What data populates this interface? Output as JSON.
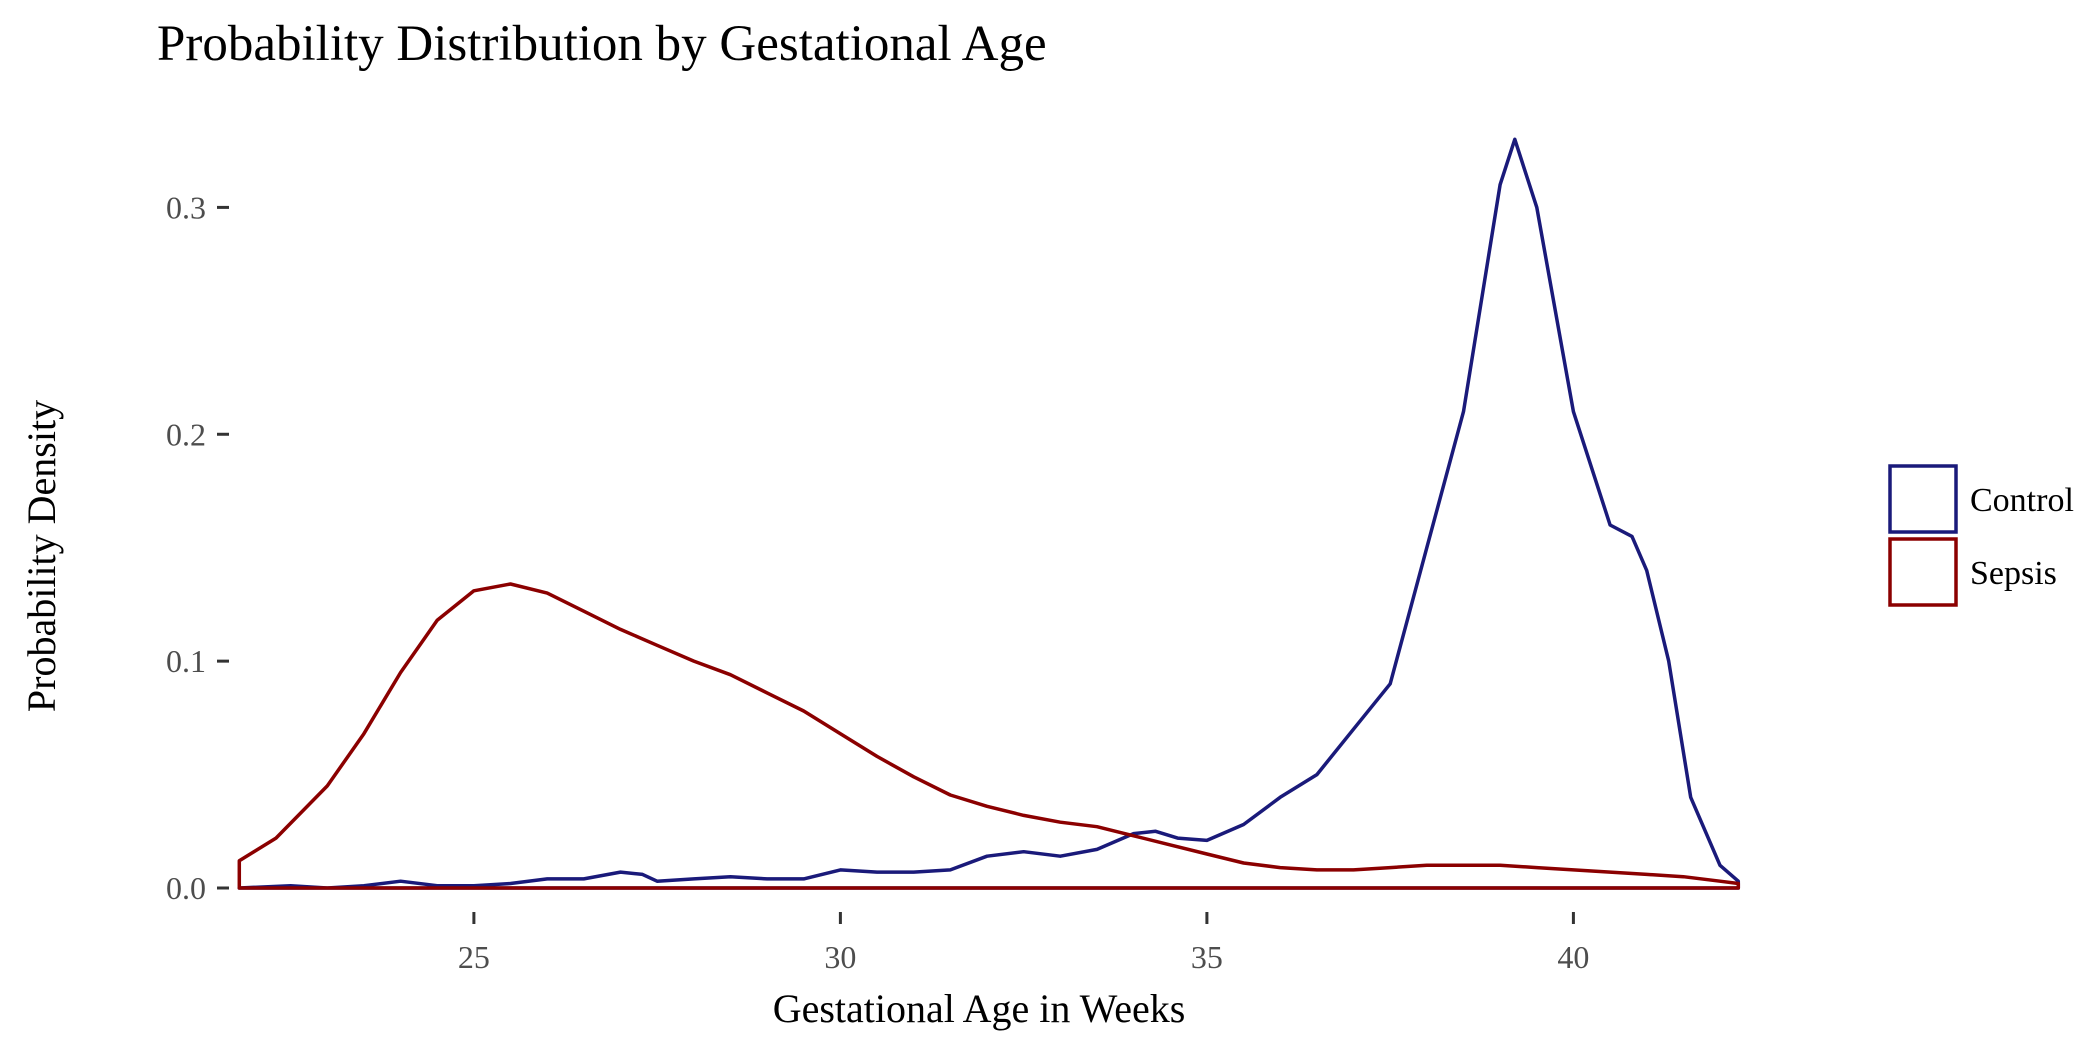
{
  "chart_data": {
    "type": "line",
    "subtype": "density",
    "title": "Probability Distribution by Gestational Age",
    "xlabel": "Gestational Age in Weeks",
    "ylabel": "Probability Density",
    "xlim": [
      21.7,
      42.3
    ],
    "ylim": [
      0,
      0.335
    ],
    "x_ticks": [
      25,
      30,
      35,
      40
    ],
    "y_ticks": [
      0.0,
      0.1,
      0.2,
      0.3
    ],
    "y_tick_labels": [
      "0.0",
      "0.1",
      "0.2",
      "0.3"
    ],
    "grid": false,
    "legend": "right",
    "series": [
      {
        "name": "Control",
        "color": "#1a1a7a",
        "x": [
          21.8,
          22.5,
          23.0,
          23.5,
          24.0,
          24.5,
          25.0,
          25.5,
          26.0,
          26.5,
          27.0,
          27.3,
          27.5,
          28.0,
          28.5,
          29.0,
          29.5,
          30.0,
          30.5,
          31.0,
          31.5,
          32.0,
          32.5,
          33.0,
          33.5,
          34.0,
          34.3,
          34.6,
          35.0,
          35.5,
          36.0,
          36.5,
          37.0,
          37.5,
          38.0,
          38.5,
          39.0,
          39.2,
          39.5,
          40.0,
          40.5,
          40.8,
          41.0,
          41.3,
          41.6,
          42.0,
          42.25
        ],
        "values": [
          0.0,
          0.001,
          0.0,
          0.001,
          0.003,
          0.001,
          0.001,
          0.002,
          0.004,
          0.004,
          0.007,
          0.006,
          0.003,
          0.004,
          0.005,
          0.004,
          0.004,
          0.008,
          0.007,
          0.007,
          0.008,
          0.014,
          0.016,
          0.014,
          0.017,
          0.024,
          0.025,
          0.022,
          0.021,
          0.028,
          0.04,
          0.05,
          0.07,
          0.09,
          0.15,
          0.21,
          0.31,
          0.33,
          0.3,
          0.21,
          0.16,
          0.155,
          0.14,
          0.1,
          0.04,
          0.01,
          0.003
        ]
      },
      {
        "name": "Sepsis",
        "color": "#8b0000",
        "x": [
          21.8,
          22.3,
          23.0,
          23.5,
          24.0,
          24.5,
          25.0,
          25.5,
          26.0,
          26.5,
          27.0,
          27.5,
          28.0,
          28.5,
          29.0,
          29.5,
          30.0,
          30.5,
          31.0,
          31.5,
          32.0,
          32.5,
          33.0,
          33.5,
          34.0,
          34.5,
          35.0,
          35.5,
          36.0,
          36.5,
          37.0,
          37.5,
          38.0,
          38.5,
          39.0,
          39.5,
          40.0,
          40.5,
          41.0,
          41.5,
          42.0,
          42.25
        ],
        "values": [
          0.012,
          0.022,
          0.045,
          0.068,
          0.095,
          0.118,
          0.131,
          0.134,
          0.13,
          0.122,
          0.114,
          0.107,
          0.1,
          0.094,
          0.086,
          0.078,
          0.068,
          0.058,
          0.049,
          0.041,
          0.036,
          0.032,
          0.029,
          0.027,
          0.023,
          0.019,
          0.015,
          0.011,
          0.009,
          0.008,
          0.008,
          0.009,
          0.01,
          0.01,
          0.01,
          0.009,
          0.008,
          0.007,
          0.006,
          0.005,
          0.003,
          0.002
        ]
      }
    ]
  }
}
